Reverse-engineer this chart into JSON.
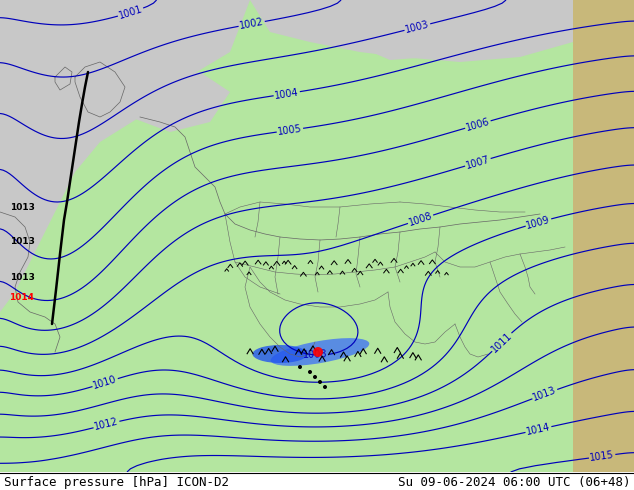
{
  "title_left": "Surface pressure [hPa] ICON-D2",
  "title_right": "Su 09-06-2024 06:00 UTC (06+48)",
  "bg_green": "#b4e6a0",
  "bg_grey": "#c8c8c8",
  "bg_tan": "#c8b87a",
  "contour_color": "#0000bb",
  "contour_lw": 0.85,
  "label_fontsize": 7,
  "title_fontsize": 9,
  "border_color": "#666666",
  "border_lw": 0.5,
  "footer_bg": "#ffffff",
  "footer_line_color": "#000000"
}
